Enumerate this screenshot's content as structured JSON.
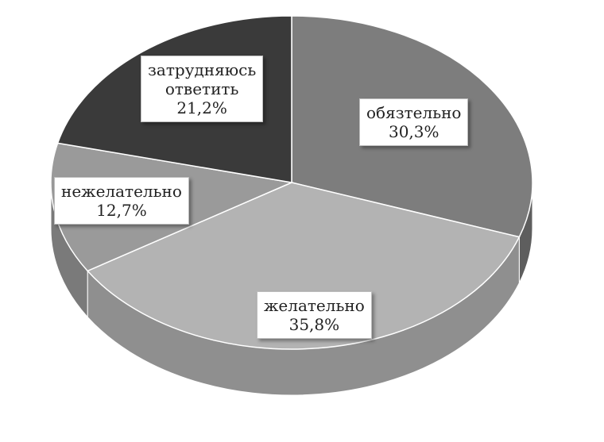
{
  "chart_data": {
    "type": "pie",
    "style": "3d",
    "slices": [
      {
        "label": "обязтельно",
        "value": 30.3,
        "value_label": "30,3%",
        "color": "#7d7d7d",
        "side_color": "#5e5e5e"
      },
      {
        "label": "желательно",
        "value": 35.8,
        "value_label": "35,8%",
        "color": "#b3b3b3",
        "side_color": "#8f8f8f"
      },
      {
        "label": "нежелательно",
        "value": 12.7,
        "value_label": "12,7%",
        "color": "#9a9a9a",
        "side_color": "#7a7a7a"
      },
      {
        "label": "затрудняюсь ответить",
        "label_lines": [
          "затрудняюсь",
          "ответить"
        ],
        "value": 21.2,
        "value_label": "21,2%",
        "color": "#3a3a3a",
        "side_color": "#262626"
      }
    ],
    "legend": "none"
  }
}
